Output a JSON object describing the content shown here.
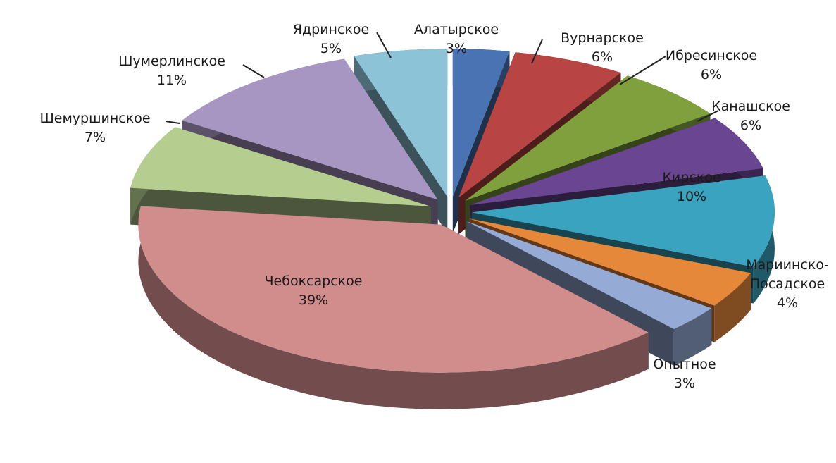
{
  "chart_data": {
    "type": "pie",
    "three_d": true,
    "exploded": true,
    "slices": [
      {
        "label": "Алатырское",
        "value": 3,
        "pct_label": "3%",
        "color": "#4a73b3"
      },
      {
        "label": "Вурнарское",
        "value": 6,
        "pct_label": "6%",
        "color": "#b84443"
      },
      {
        "label": "Ибресинское",
        "value": 6,
        "pct_label": "6%",
        "color": "#7fa03c"
      },
      {
        "label": "Канашское",
        "value": 6,
        "pct_label": "6%",
        "color": "#6a4592"
      },
      {
        "label": "Кирское",
        "value": 10,
        "pct_label": "10%",
        "color": "#3aa3bf"
      },
      {
        "label": "Мариинско-Посадское",
        "label_lines": [
          "Мариинско-",
          "Посадское"
        ],
        "value": 4,
        "pct_label": "4%",
        "color": "#e6883a"
      },
      {
        "label": "Опытное",
        "value": 3,
        "pct_label": "3%",
        "color": "#95abd6"
      },
      {
        "label": "Чебоксарское",
        "value": 39,
        "pct_label": "39%",
        "color": "#d18c8c"
      },
      {
        "label": "Шемуршинское",
        "value": 7,
        "pct_label": "7%",
        "color": "#b5cd8e"
      },
      {
        "label": "Шумерлинское",
        "value": 11,
        "pct_label": "11%",
        "color": "#a896c2"
      },
      {
        "label": "Ядринское",
        "value": 5,
        "pct_label": "5%",
        "color": "#8cc3d6"
      }
    ]
  }
}
